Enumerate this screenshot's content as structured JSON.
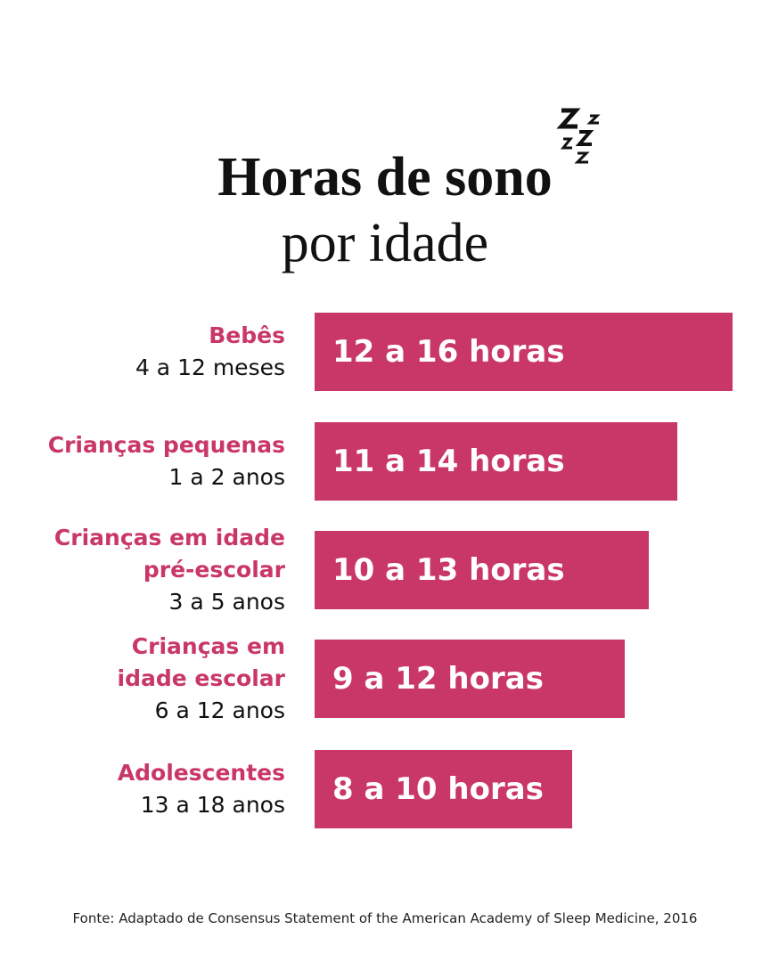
{
  "header": {
    "title_line1": "Horas de sono",
    "title_line2": "por idade"
  },
  "rows": [
    {
      "group": [
        "Bebês"
      ],
      "age": "4 a 12 meses",
      "hours": "12 a 16 horas"
    },
    {
      "group": [
        "Crianças pequenas"
      ],
      "age": "1 a 2 anos",
      "hours": "11 a 14 horas"
    },
    {
      "group": [
        "Crianças em idade",
        "pré-escolar"
      ],
      "age": "3 a 5 anos",
      "hours": "10 a 13 horas"
    },
    {
      "group": [
        "Crianças em",
        "idade escolar"
      ],
      "age": "6 a 12 anos",
      "hours": "9 a 12 horas"
    },
    {
      "group": [
        "Adolescentes"
      ],
      "age": "13 a 18 anos",
      "hours": "8 a 10 horas"
    }
  ],
  "footer": {
    "source": "Fonte: Adaptado de Consensus Statement of the American Academy of Sleep Medicine, 2016"
  }
}
